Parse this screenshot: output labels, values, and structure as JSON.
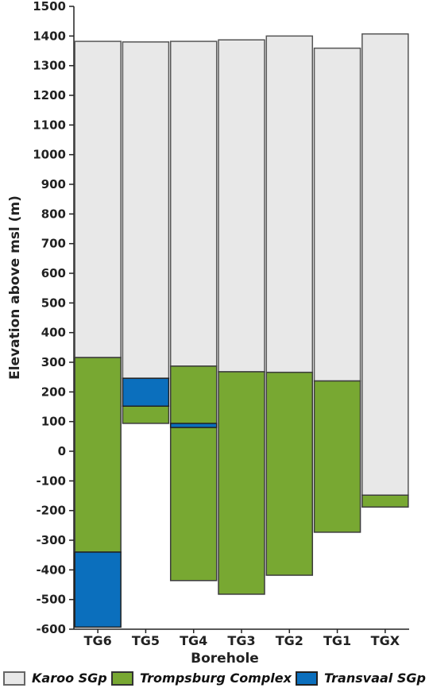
{
  "chart_data": {
    "type": "bar",
    "stacked": true,
    "xlabel": "Borehole",
    "ylabel": "Elevation above msl (m)",
    "ylim": [
      -600,
      1500
    ],
    "ytick_step": 100,
    "categories": [
      "TG6",
      "TG5",
      "TG4",
      "TG3",
      "TG2",
      "TG1",
      "TGX"
    ],
    "legend_position": "bottom",
    "series": [
      {
        "name": "Karoo SGp",
        "color": "#e8e8e8",
        "stroke": "#555555",
        "segments": [
          [
            316,
            1382
          ],
          [
            246,
            1380
          ],
          [
            287,
            1382
          ],
          [
            268,
            1387
          ],
          [
            266,
            1400
          ],
          [
            237,
            1359
          ],
          [
            -148,
            1407
          ]
        ]
      },
      {
        "name": "Trompsburg Complex",
        "color": "#78a832",
        "stroke": "#3c3c3c",
        "segments": [
          [
            -340,
            316
          ],
          [
            94,
            152
          ],
          [
            -436,
            287
          ],
          [
            -482,
            268
          ],
          [
            -418,
            266
          ],
          [
            -273,
            237
          ],
          [
            -188,
            -148
          ]
        ]
      },
      {
        "name": "Transvaal SGp",
        "color": "#0b6fbd",
        "stroke": "#222222",
        "segments": [
          [
            -593,
            -340
          ],
          [
            152,
            246
          ],
          [
            80,
            94
          ],
          null,
          null,
          null,
          null
        ]
      }
    ]
  }
}
